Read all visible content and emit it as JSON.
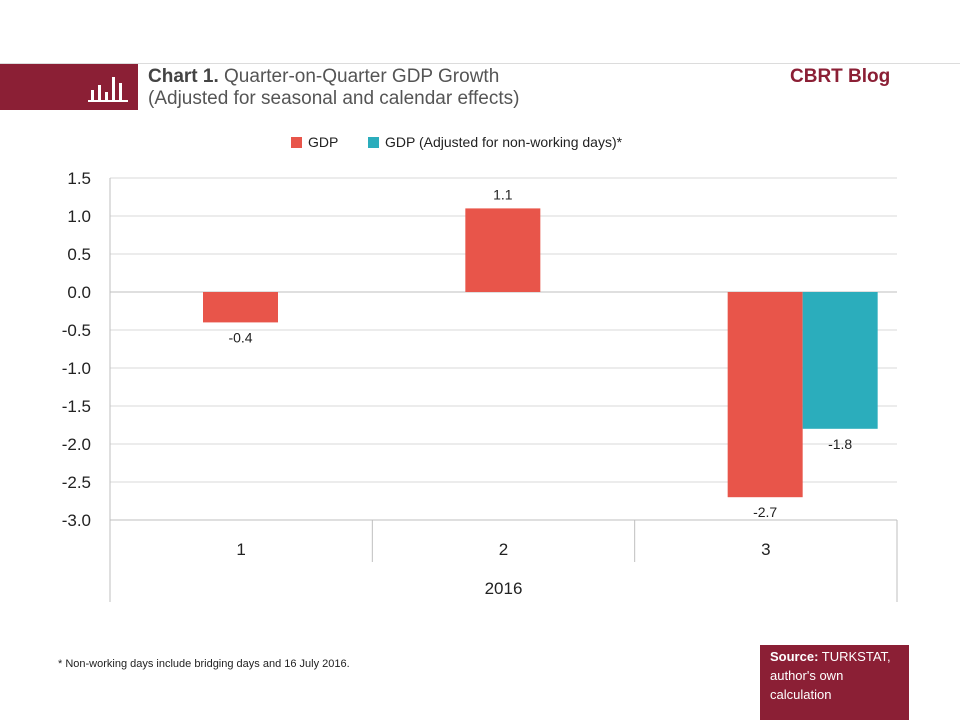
{
  "header": {
    "chart_number": "Chart 1.",
    "title": "Quarter-on-Quarter GDP Growth",
    "subtitle": "(Adjusted for seasonal and calendar effects)",
    "blog_name": "CBRT Blog",
    "icon": "bar-chart-icon"
  },
  "colors": {
    "brand": "#8b1f35",
    "gdp": "#e8554a",
    "gdp_adjusted": "#2badbc",
    "grid": "#d9d9d9"
  },
  "chart_data": {
    "type": "bar",
    "categories": [
      "1",
      "2",
      "3"
    ],
    "group_label": "2016",
    "series": [
      {
        "name": "GDP",
        "values": [
          -0.4,
          1.1,
          -2.7
        ],
        "labels": [
          "-0.4",
          "1.1",
          "-2.7"
        ]
      },
      {
        "name": "GDP (Adjusted for non-working days)*",
        "values": [
          null,
          null,
          -1.8
        ],
        "labels": [
          null,
          null,
          "-1.8"
        ]
      }
    ],
    "ylim": [
      -3.0,
      1.5
    ],
    "yticks": [
      "1.5",
      "1.0",
      "0.5",
      "0.0",
      "-0.5",
      "-1.0",
      "-1.5",
      "-2.0",
      "-2.5",
      "-3.0"
    ],
    "legend_position": "top",
    "grid": true
  },
  "footnote": "* Non-working days include bridging days and 16 July 2016.",
  "source": {
    "label": "Source:",
    "text": "TURKSTAT, author's own calculation"
  }
}
